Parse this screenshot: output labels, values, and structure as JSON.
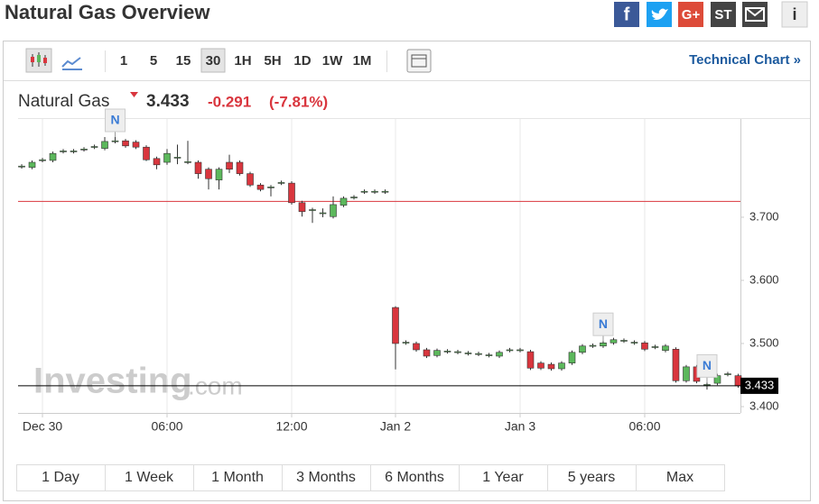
{
  "title": "Natural Gas Overview",
  "share": [
    "G+",
    "ST"
  ],
  "toolbar": {
    "intervals": [
      "1",
      "5",
      "15",
      "30",
      "1H",
      "5H",
      "1D",
      "1W",
      "1M"
    ],
    "link": "Technical Chart »"
  },
  "quote": {
    "name": "Natural Gas",
    "last": 3.433,
    "change": -0.291,
    "change_percent": "(-7.81%)"
  },
  "watermark": [
    "Investing",
    ".com"
  ],
  "ranges": [
    "1 Day",
    "1 Week",
    "1 Month",
    "3 Months",
    "6 Months",
    "1 Year",
    "5 years",
    "Max"
  ],
  "chart_data": {
    "type": "candlestick",
    "x": [
      0,
      1,
      2,
      3,
      4,
      5,
      6,
      7,
      8,
      9,
      10,
      11,
      12,
      13,
      14,
      15,
      16,
      17,
      18,
      19,
      20,
      21,
      22,
      23,
      24,
      25,
      26,
      27,
      28,
      29,
      30,
      31,
      32,
      33,
      34,
      35,
      36,
      37,
      38,
      39,
      40,
      41,
      42,
      43,
      44,
      45,
      46,
      47,
      48,
      49,
      50,
      51,
      52,
      53,
      54,
      55,
      56,
      57,
      58,
      59,
      60,
      61,
      62,
      63,
      64,
      65,
      66,
      67,
      68,
      69
    ],
    "open": [
      3.78,
      3.779,
      3.79,
      3.79,
      3.804,
      3.804,
      3.807,
      3.811,
      3.809,
      3.82,
      3.821,
      3.819,
      3.811,
      3.793,
      3.787,
      3.794,
      3.787,
      3.787,
      3.776,
      3.759,
      3.787,
      3.787,
      3.769,
      3.751,
      3.747,
      3.754,
      3.754,
      3.723,
      3.711,
      3.706,
      3.701,
      3.719,
      3.731,
      3.74,
      3.74,
      3.74,
      3.557,
      3.501,
      3.5,
      3.49,
      3.481,
      3.487,
      3.486,
      3.484,
      3.483,
      3.481,
      3.48,
      3.489,
      3.489,
      3.487,
      3.469,
      3.467,
      3.46,
      3.469,
      3.486,
      3.496,
      3.496,
      3.501,
      3.504,
      3.501,
      3.501,
      3.494,
      3.489,
      3.491,
      3.441,
      3.463,
      3.434,
      3.437,
      3.451,
      3.449
    ],
    "high": [
      3.784,
      3.79,
      3.794,
      3.804,
      3.808,
      3.808,
      3.811,
      3.815,
      3.827,
      3.827,
      3.824,
      3.822,
      3.814,
      3.796,
      3.808,
      3.815,
      3.821,
      3.79,
      3.779,
      3.779,
      3.799,
      3.79,
      3.772,
      3.754,
      3.751,
      3.758,
      3.757,
      3.726,
      3.715,
      3.714,
      3.733,
      3.733,
      3.735,
      3.744,
      3.744,
      3.744,
      3.559,
      3.505,
      3.503,
      3.493,
      3.492,
      3.491,
      3.49,
      3.488,
      3.487,
      3.485,
      3.489,
      3.493,
      3.493,
      3.49,
      3.472,
      3.47,
      3.472,
      3.489,
      3.499,
      3.5,
      3.504,
      3.509,
      3.508,
      3.505,
      3.504,
      3.498,
      3.499,
      3.494,
      3.466,
      3.466,
      3.438,
      3.452,
      3.455,
      3.452
    ],
    "low": [
      3.777,
      3.776,
      3.787,
      3.787,
      3.801,
      3.801,
      3.804,
      3.808,
      3.806,
      3.817,
      3.81,
      3.808,
      3.789,
      3.776,
      3.783,
      3.784,
      3.784,
      3.761,
      3.744,
      3.744,
      3.77,
      3.766,
      3.748,
      3.741,
      3.733,
      3.751,
      3.72,
      3.701,
      3.691,
      3.7,
      3.698,
      3.716,
      3.728,
      3.737,
      3.737,
      3.737,
      3.459,
      3.498,
      3.487,
      3.477,
      3.478,
      3.484,
      3.483,
      3.481,
      3.48,
      3.478,
      3.477,
      3.486,
      3.486,
      3.458,
      3.458,
      3.457,
      3.457,
      3.466,
      3.483,
      3.493,
      3.493,
      3.498,
      3.501,
      3.498,
      3.488,
      3.491,
      3.486,
      3.438,
      3.438,
      3.437,
      3.427,
      3.434,
      3.448,
      3.43
    ],
    "close": [
      3.781,
      3.787,
      3.791,
      3.801,
      3.805,
      3.805,
      3.808,
      3.812,
      3.82,
      3.821,
      3.813,
      3.811,
      3.791,
      3.783,
      3.801,
      3.795,
      3.788,
      3.769,
      3.761,
      3.776,
      3.776,
      3.769,
      3.751,
      3.744,
      3.748,
      3.755,
      3.723,
      3.709,
      3.712,
      3.707,
      3.72,
      3.73,
      3.732,
      3.741,
      3.741,
      3.741,
      3.5,
      3.502,
      3.49,
      3.48,
      3.489,
      3.488,
      3.487,
      3.485,
      3.484,
      3.482,
      3.486,
      3.49,
      3.49,
      3.461,
      3.461,
      3.46,
      3.469,
      3.486,
      3.496,
      3.497,
      3.501,
      3.506,
      3.505,
      3.502,
      3.491,
      3.495,
      3.496,
      3.441,
      3.463,
      3.44,
      3.435,
      3.449,
      3.452,
      3.433
    ],
    "up_color": "#5cb85c",
    "down_color": "#d9363e",
    "xlim": [
      -0.35,
      69.22
    ],
    "xticks": [
      {
        "value": 2,
        "label": "Dec 30"
      },
      {
        "value": 14,
        "label": "06:00"
      },
      {
        "value": 26,
        "label": "12:00"
      },
      {
        "value": 36,
        "label": "Jan 2"
      },
      {
        "value": 48,
        "label": "Jan 3"
      },
      {
        "value": 60,
        "label": "06:00"
      }
    ],
    "ylim": [
      3.39,
      3.847
    ],
    "yticks": [
      {
        "value": 3.4,
        "label": "3.400"
      },
      {
        "value": 3.5,
        "label": "3.500"
      },
      {
        "value": 3.6,
        "label": "3.600"
      },
      {
        "value": 3.7,
        "label": "3.700"
      }
    ],
    "reference_line": {
      "value": 3.725,
      "color": "#d9363e"
    },
    "annotations": [
      {
        "x": 9,
        "text": "N"
      },
      {
        "x": 56,
        "text": "N"
      },
      {
        "x": 66,
        "text": "N"
      }
    ],
    "grid": true
  }
}
